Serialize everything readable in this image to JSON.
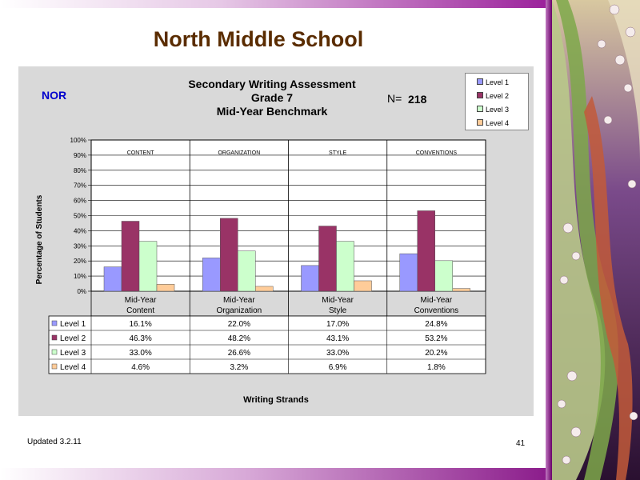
{
  "slide": {
    "title": "North Middle School",
    "footer_left": "Updated  3.2.11",
    "page_number": "41"
  },
  "header": {
    "school_code": "NOR",
    "title_lines": [
      "Secondary Writing Assessment",
      "Grade 7",
      "Mid-Year Benchmark"
    ],
    "n_label": "N=",
    "n_value": "218"
  },
  "colors": {
    "accent_purple": "#8a1a8a",
    "title_brown": "#5a2c00",
    "level1": "#9999ff",
    "level2": "#993366",
    "level3": "#ccffcc",
    "level4": "#ffcc99"
  },
  "chart_data": {
    "type": "bar",
    "title": "Secondary Writing Assessment Grade 7 Mid-Year Benchmark",
    "ylabel": "Percentage of Students",
    "xlabel": "Writing Strands",
    "ylim": [
      0,
      100
    ],
    "yticks": [
      "0%",
      "10%",
      "20%",
      "30%",
      "40%",
      "50%",
      "60%",
      "70%",
      "80%",
      "90%",
      "100%"
    ],
    "group_headers": [
      "CONTENT",
      "ORGANIZATION",
      "STYLE",
      "CONVENTIONS"
    ],
    "categories": [
      [
        "Mid-Year",
        "Content"
      ],
      [
        "Mid-Year",
        "Organization"
      ],
      [
        "Mid-Year",
        "Style"
      ],
      [
        "Mid-Year",
        "Conventions"
      ]
    ],
    "series": [
      {
        "name": "Level 1",
        "color": "#9999ff",
        "values": [
          16.1,
          22.0,
          17.0,
          24.8
        ],
        "labels": [
          "16.1%",
          "22.0%",
          "17.0%",
          "24.8%"
        ]
      },
      {
        "name": "Level 2",
        "color": "#993366",
        "values": [
          46.3,
          48.2,
          43.1,
          53.2
        ],
        "labels": [
          "46.3%",
          "48.2%",
          "43.1%",
          "53.2%"
        ]
      },
      {
        "name": "Level 3",
        "color": "#ccffcc",
        "values": [
          33.0,
          26.6,
          33.0,
          20.2
        ],
        "labels": [
          "33.0%",
          "26.6%",
          "33.0%",
          "20.2%"
        ]
      },
      {
        "name": "Level 4",
        "color": "#ffcc99",
        "values": [
          4.6,
          3.2,
          6.9,
          1.8
        ],
        "labels": [
          "4.6%",
          "3.2%",
          "6.9%",
          "1.8%"
        ]
      }
    ],
    "grid": true,
    "legend": "top-right",
    "data_table": true
  }
}
